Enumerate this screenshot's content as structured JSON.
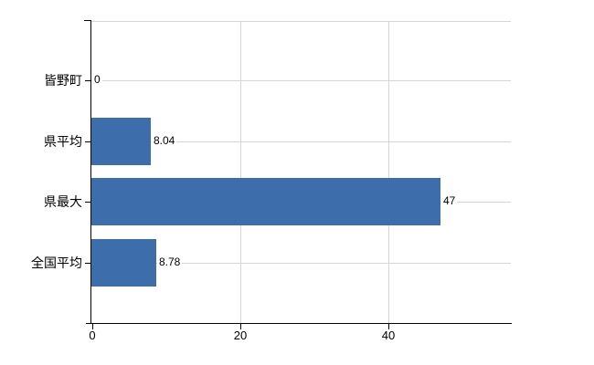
{
  "chart_data": {
    "type": "bar",
    "orientation": "horizontal",
    "title": "",
    "categories": [
      "皆野町",
      "県平均",
      "県最大",
      "全国平均"
    ],
    "values": [
      0,
      8.04,
      47,
      8.78
    ],
    "value_labels": [
      "0",
      "8.04",
      "47",
      "8.78"
    ],
    "x_ticks": [
      {
        "value": 0,
        "label": "0"
      },
      {
        "value": 20,
        "label": "20"
      },
      {
        "value": 40,
        "label": "40"
      }
    ],
    "xlim": [
      0,
      56.6
    ],
    "grid": true,
    "legend_position": "none",
    "colors": {
      "bar": "#3d6dab",
      "grid": "#d6d6d6",
      "axis": "#000000",
      "text": "#000000",
      "background": "#ffffff"
    }
  }
}
